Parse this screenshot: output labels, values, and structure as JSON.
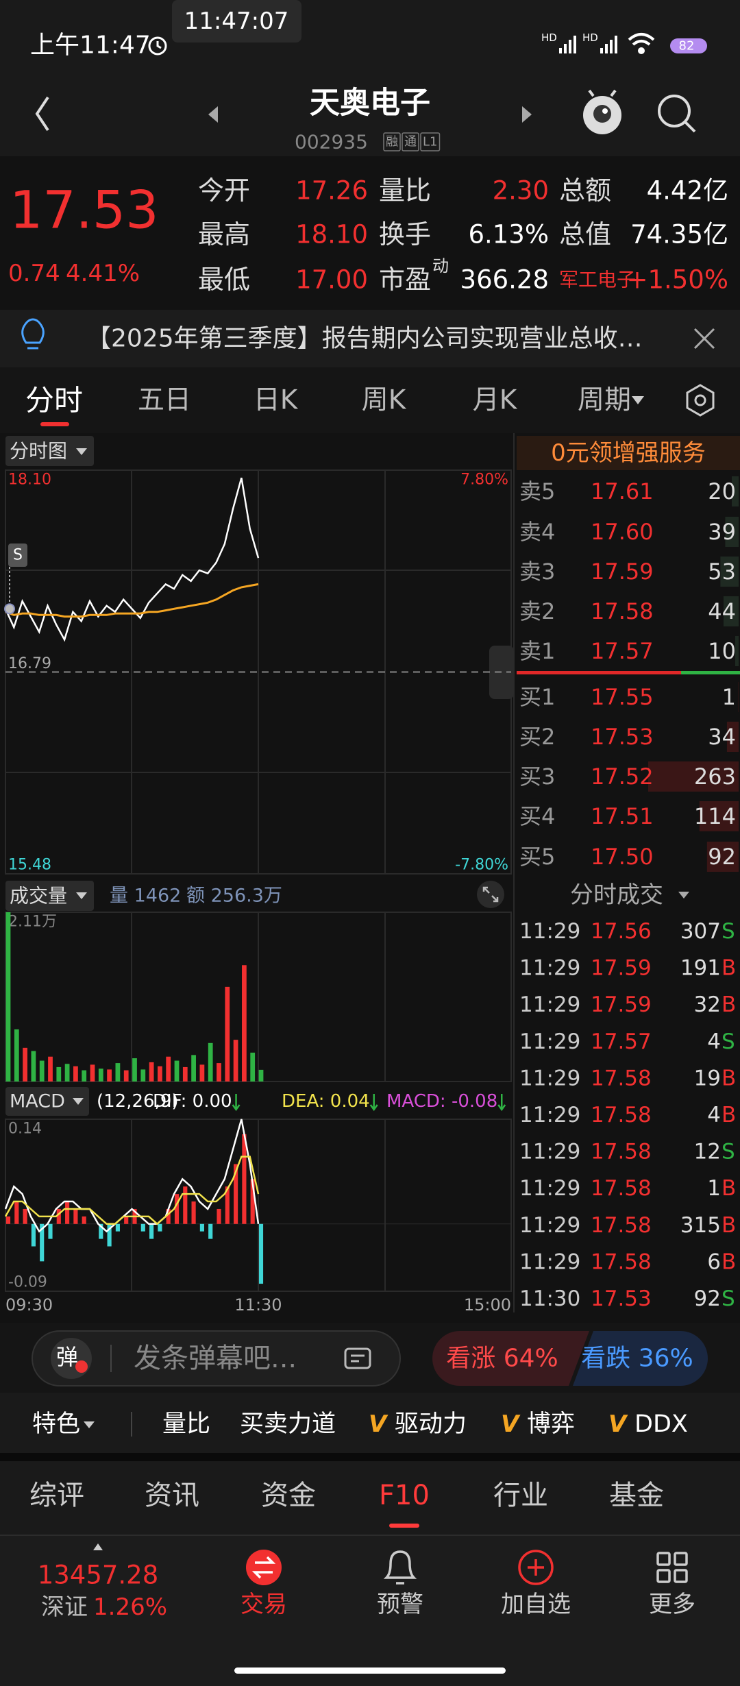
{
  "status_bar": {
    "time": "上午11:47",
    "clock_overlay": "11:47:07",
    "network": [
      "HD",
      "HD"
    ],
    "battery": "82"
  },
  "header": {
    "title": "天奥电子",
    "code": "002935",
    "badges": [
      "融",
      "通",
      "L1"
    ]
  },
  "quote": {
    "price": "17.53",
    "change": "0.74",
    "change_pct": "4.41%",
    "stats": [
      {
        "label": "今开",
        "value": "17.26",
        "color": "#f23030"
      },
      {
        "label": "量比",
        "value": "2.30",
        "color": "#f23030"
      },
      {
        "label": "总额",
        "value": "4.42亿",
        "color": "#ffffff"
      },
      {
        "label": "最高",
        "value": "18.10",
        "color": "#f23030"
      },
      {
        "label": "换手",
        "value": "6.13%",
        "color": "#ffffff"
      },
      {
        "label": "总值",
        "value": "74.35亿",
        "color": "#ffffff"
      },
      {
        "label": "最低",
        "value": "17.00",
        "color": "#f23030"
      },
      {
        "label": "市盈",
        "sup": "动",
        "value": "366.28",
        "color": "#ffffff"
      },
      {
        "label": "军工电子",
        "value": "+1.50%",
        "color": "#f23030",
        "label_color": "#f23030"
      }
    ]
  },
  "notice": "【2025年第三季度】报告期内公司实现营业总收…",
  "tabs": {
    "items": [
      "分时",
      "五日",
      "日K",
      "周K",
      "月K",
      "周期"
    ],
    "active": 0
  },
  "chart_data": [
    {
      "type": "line",
      "title": "分时图",
      "marker_label": "S",
      "x": [
        0,
        4,
        8,
        12,
        16,
        20,
        24,
        28,
        32,
        36,
        40,
        44,
        48,
        52,
        56,
        60,
        64,
        68,
        72,
        76,
        80,
        84,
        88,
        92,
        96,
        100,
        104,
        108,
        112,
        116,
        120
      ],
      "xlim": [
        0,
        240
      ],
      "ylim": [
        15.48,
        18.1
      ],
      "yticks": [
        {
          "value": 18.1,
          "label": "18.10"
        },
        16.79,
        15.48
      ],
      "y2lim": [
        -7.8,
        7.8
      ],
      "y2ticks": [
        {
          "value": 7.8,
          "label": "7.80%"
        },
        {
          "value": -7.8,
          "label": "-7.80%"
        }
      ],
      "series": [
        {
          "color": "#ffffff",
          "values": [
            17.2,
            17.08,
            17.25,
            17.15,
            17.05,
            17.22,
            17.1,
            17.0,
            17.18,
            17.12,
            17.25,
            17.15,
            17.22,
            17.18,
            17.26,
            17.2,
            17.14,
            17.24,
            17.3,
            17.36,
            17.33,
            17.42,
            17.38,
            17.45,
            17.43,
            17.5,
            17.62,
            17.85,
            18.05,
            17.72,
            17.53
          ]
        },
        {
          "color": "#f5a623",
          "values": [
            17.18,
            17.16,
            17.17,
            17.17,
            17.16,
            17.16,
            17.16,
            17.15,
            17.15,
            17.15,
            17.16,
            17.16,
            17.16,
            17.17,
            17.17,
            17.17,
            17.17,
            17.18,
            17.18,
            17.19,
            17.2,
            17.21,
            17.22,
            17.23,
            17.24,
            17.26,
            17.29,
            17.32,
            17.34,
            17.35,
            17.36
          ]
        }
      ]
    },
    {
      "type": "bar",
      "title": "成交量",
      "volume_label": "量 1462",
      "amount_label": "额 256.3万",
      "x": [
        0,
        4,
        8,
        12,
        16,
        20,
        24,
        28,
        32,
        36,
        40,
        44,
        48,
        52,
        56,
        60,
        64,
        68,
        72,
        76,
        80,
        84,
        88,
        92,
        96,
        100,
        104,
        108,
        112,
        116,
        120
      ],
      "xlim": [
        0,
        240
      ],
      "ylim": [
        0,
        21100
      ],
      "yticks": [
        {
          "value": 21100,
          "label": "2.11万"
        }
      ],
      "values": [
        21100,
        6500,
        4200,
        3800,
        2600,
        3100,
        1800,
        2200,
        1900,
        1400,
        2100,
        1600,
        1500,
        2300,
        1400,
        2900,
        1500,
        2400,
        1900,
        3100,
        2600,
        1800,
        3300,
        2100,
        4800,
        2300,
        11800,
        5200,
        14500,
        3600,
        1462
      ],
      "colors": [
        "#2fb344",
        "#2fb344",
        "#f23030",
        "#2fb344",
        "#2fb344",
        "#f23030",
        "#2fb344",
        "#2fb344",
        "#f23030",
        "#2fb344",
        "#f23030",
        "#2fb344",
        "#f23030",
        "#2fb344",
        "#f23030",
        "#2fb344",
        "#2fb344",
        "#f23030",
        "#f23030",
        "#f23030",
        "#2fb344",
        "#f23030",
        "#2fb344",
        "#f23030",
        "#2fb344",
        "#f23030",
        "#f23030",
        "#f23030",
        "#f23030",
        "#2fb344",
        "#2fb344"
      ]
    },
    {
      "type": "macd",
      "title": "MACD",
      "params": "(12,26,9)",
      "legend": [
        {
          "text": "DIF: 0.00",
          "color": "#ffffff"
        },
        {
          "text": "DEA: 0.04",
          "color": "#f2e34c"
        },
        {
          "text": "MACD: -0.08",
          "color": "#d94fd9"
        }
      ],
      "x": [
        0,
        4,
        8,
        12,
        16,
        20,
        24,
        28,
        32,
        36,
        40,
        44,
        48,
        52,
        56,
        60,
        64,
        68,
        72,
        76,
        80,
        84,
        88,
        92,
        96,
        100,
        104,
        108,
        112,
        116,
        120
      ],
      "xlim": [
        0,
        240
      ],
      "xticks": [
        {
          "value": 0,
          "label": "09:30"
        },
        {
          "value": 120,
          "label": "11:30"
        },
        {
          "value": 240,
          "label": "15:00"
        }
      ],
      "ylim": [
        -0.09,
        0.14
      ],
      "yticks": [
        0.14,
        -0.09
      ],
      "series": [
        {
          "color": "#ffffff",
          "values": [
            0.02,
            0.05,
            0.04,
            0.01,
            -0.01,
            0.0,
            0.02,
            0.03,
            0.03,
            0.02,
            0.02,
            0.0,
            -0.01,
            0.0,
            0.01,
            0.02,
            0.01,
            0.0,
            0.0,
            0.01,
            0.04,
            0.06,
            0.05,
            0.03,
            0.02,
            0.04,
            0.06,
            0.1,
            0.14,
            0.08,
            0.0
          ]
        },
        {
          "color": "#f2e34c",
          "values": [
            0.01,
            0.03,
            0.03,
            0.02,
            0.01,
            0.01,
            0.01,
            0.02,
            0.02,
            0.02,
            0.02,
            0.01,
            0.0,
            0.0,
            0.01,
            0.01,
            0.01,
            0.01,
            0.0,
            0.01,
            0.02,
            0.04,
            0.04,
            0.04,
            0.03,
            0.03,
            0.04,
            0.06,
            0.09,
            0.09,
            0.04
          ]
        },
        {
          "up_color": "#f23030",
          "down_color": "#3fd6d6",
          "values": [
            0.01,
            0.03,
            0.02,
            -0.03,
            -0.05,
            -0.02,
            0.02,
            0.03,
            0.02,
            0.01,
            0.0,
            -0.02,
            -0.03,
            -0.01,
            0.01,
            0.02,
            -0.01,
            -0.02,
            -0.01,
            0.02,
            0.04,
            0.05,
            0.03,
            -0.01,
            -0.02,
            0.02,
            0.05,
            0.08,
            0.12,
            0.06,
            -0.08
          ]
        }
      ]
    }
  ],
  "order_book": {
    "banner": "0元领增强服务",
    "asks": [
      {
        "label": "卖5",
        "price": "17.61",
        "volume": 20
      },
      {
        "label": "卖4",
        "price": "17.60",
        "volume": 39
      },
      {
        "label": "卖3",
        "price": "17.59",
        "volume": 53
      },
      {
        "label": "卖2",
        "price": "17.58",
        "volume": 44
      },
      {
        "label": "卖1",
        "price": "17.57",
        "volume": 10
      }
    ],
    "bids": [
      {
        "label": "买1",
        "price": "17.55",
        "volume": 1
      },
      {
        "label": "买2",
        "price": "17.53",
        "volume": 34
      },
      {
        "label": "买3",
        "price": "17.52",
        "volume": 263
      },
      {
        "label": "买4",
        "price": "17.51",
        "volume": 114
      },
      {
        "label": "买5",
        "price": "17.50",
        "volume": 92
      }
    ]
  },
  "trades": {
    "title": "分时成交",
    "rows": [
      {
        "time": "11:29",
        "price": "17.56",
        "volume": "307",
        "side": "S"
      },
      {
        "time": "11:29",
        "price": "17.59",
        "volume": "191",
        "side": "B"
      },
      {
        "time": "11:29",
        "price": "17.59",
        "volume": "32",
        "side": "B"
      },
      {
        "time": "11:29",
        "price": "17.57",
        "volume": "4",
        "side": "S"
      },
      {
        "time": "11:29",
        "price": "17.58",
        "volume": "19",
        "side": "B"
      },
      {
        "time": "11:29",
        "price": "17.58",
        "volume": "4",
        "side": "B"
      },
      {
        "time": "11:29",
        "price": "17.58",
        "volume": "12",
        "side": "S"
      },
      {
        "time": "11:29",
        "price": "17.58",
        "volume": "1",
        "side": "B"
      },
      {
        "time": "11:29",
        "price": "17.58",
        "volume": "315",
        "side": "B"
      },
      {
        "time": "11:29",
        "price": "17.58",
        "volume": "6",
        "side": "B"
      },
      {
        "time": "11:30",
        "price": "17.53",
        "volume": "92",
        "side": "S"
      }
    ]
  },
  "danmu": {
    "badge": "弹",
    "placeholder": "发条弹幕吧..."
  },
  "sentiment": {
    "bull": "看涨 64%",
    "bear": "看跌 36%"
  },
  "features": {
    "title": "特色",
    "items": [
      {
        "text": "量比"
      },
      {
        "text": "买卖力道"
      },
      {
        "text": "驱动力",
        "vip": "V"
      },
      {
        "text": "博弈",
        "vip": "V"
      },
      {
        "text": "DDX",
        "vip": "V"
      }
    ]
  },
  "f10_tabs": {
    "items": [
      "综评",
      "资讯",
      "资金",
      "F10",
      "行业",
      "基金"
    ],
    "active": 3
  },
  "bottom_nav": {
    "index_value": "13457.28",
    "index_name": "深证",
    "index_change": "1.26%",
    "items": [
      "交易",
      "预警",
      "加自选",
      "更多"
    ],
    "active": 0
  }
}
